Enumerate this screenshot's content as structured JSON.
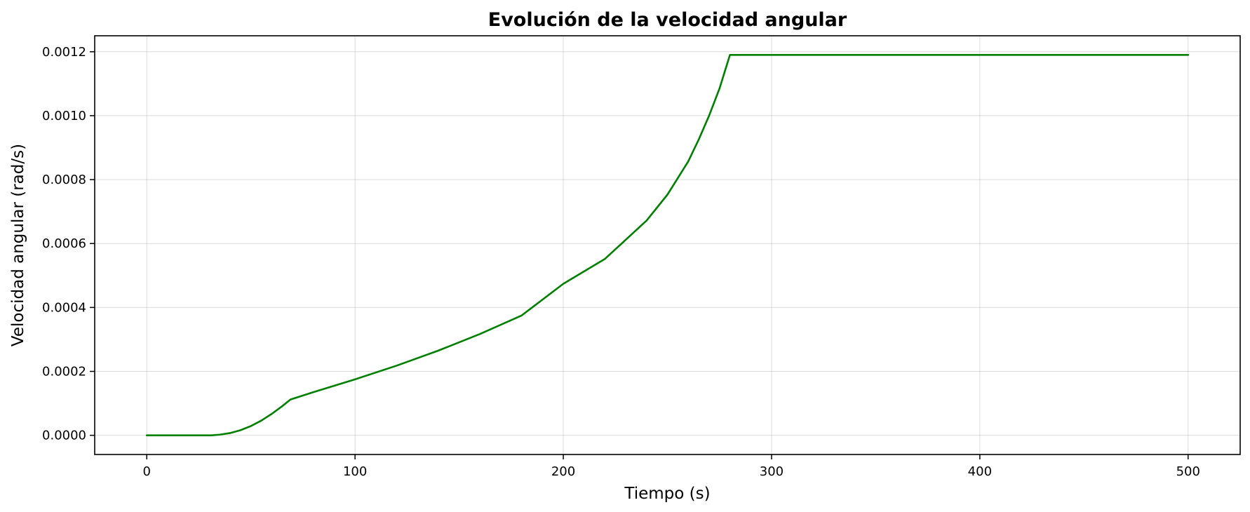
{
  "chart_data": {
    "type": "line",
    "title": "Evolución de la velocidad angular",
    "xlabel": "Tiempo (s)",
    "ylabel": "Velocidad angular (rad/s)",
    "xlim": [
      -25,
      525
    ],
    "ylim": [
      -6e-05,
      0.00125
    ],
    "xticks": [
      0,
      100,
      200,
      300,
      400,
      500
    ],
    "xtick_labels": [
      "0",
      "100",
      "200",
      "300",
      "400",
      "500"
    ],
    "yticks": [
      0,
      0.0002,
      0.0004,
      0.0006,
      0.0008,
      0.001,
      0.0012
    ],
    "ytick_labels": [
      "0.0000",
      "0.0002",
      "0.0004",
      "0.0006",
      "0.0008",
      "0.0010",
      "0.0012"
    ],
    "grid": true,
    "series": [
      {
        "color": "#008000",
        "x": [
          0,
          10,
          20,
          31,
          35,
          40,
          45,
          50,
          55,
          60,
          65,
          69,
          80,
          100,
          120,
          140,
          160,
          180,
          200,
          220,
          240,
          250,
          260,
          265,
          270,
          275,
          280,
          300,
          350,
          400,
          450,
          500
        ],
        "y": [
          0,
          0,
          0,
          0,
          2e-06,
          7e-06,
          1.6e-05,
          2.9e-05,
          4.6e-05,
          6.7e-05,
          9.1e-05,
          0.000112,
          0.000135,
          0.000175,
          0.000218,
          0.000265,
          0.000317,
          0.000375,
          0.000474,
          0.000552,
          0.000672,
          0.000753,
          0.000857,
          0.000925,
          0.001,
          0.001085,
          0.00119,
          0.00119,
          0.00119,
          0.00119,
          0.00119,
          0.00119
        ]
      }
    ]
  }
}
